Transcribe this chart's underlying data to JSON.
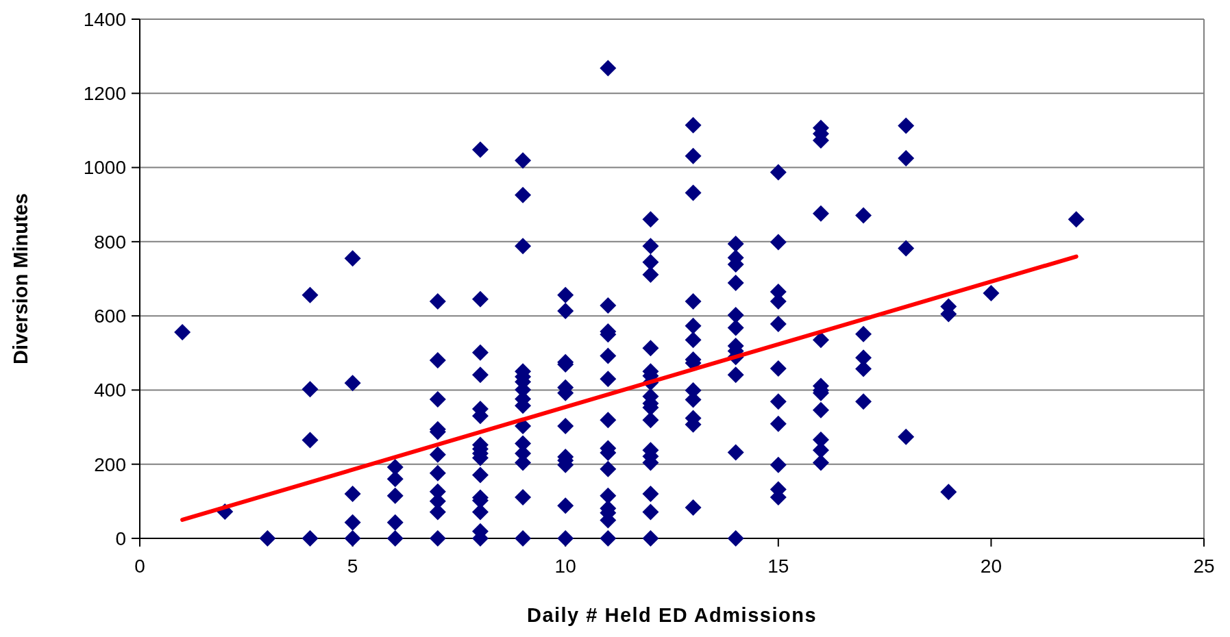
{
  "chart_data": {
    "type": "scatter",
    "xlabel": "Daily # Held ED Admissions",
    "ylabel": "Diversion Minutes",
    "xlim": [
      0,
      25
    ],
    "xticks": [
      0,
      5,
      10,
      15,
      20,
      25
    ],
    "ylim": [
      0,
      1400
    ],
    "yticks": [
      0,
      200,
      400,
      600,
      800,
      1000,
      1200,
      1400
    ],
    "grid": "y",
    "series": [
      {
        "color": "#000080",
        "marker": "diamond",
        "x": [
          1,
          2,
          3,
          4,
          4,
          4,
          4,
          5,
          5,
          5,
          5,
          5,
          6,
          6,
          6,
          6,
          6,
          7,
          7,
          7,
          7,
          7,
          7,
          7,
          7,
          7,
          7,
          7,
          8,
          8,
          8,
          8,
          8,
          8,
          8,
          8,
          8,
          8,
          8,
          8,
          8,
          8,
          8,
          8,
          9,
          9,
          9,
          9,
          9,
          9,
          9,
          9,
          9,
          9,
          9,
          9,
          9,
          9,
          9,
          10,
          10,
          10,
          10,
          10,
          10,
          10,
          10,
          10,
          10,
          10,
          10,
          11,
          11,
          11,
          11,
          11,
          11,
          11,
          11,
          11,
          11,
          11,
          11,
          11,
          11,
          11,
          12,
          12,
          12,
          12,
          12,
          12,
          12,
          12,
          12,
          12,
          12,
          12,
          12,
          12,
          12,
          12,
          12,
          12,
          13,
          13,
          13,
          13,
          13,
          13,
          13,
          13,
          13,
          13,
          13,
          13,
          13,
          14,
          14,
          14,
          14,
          14,
          14,
          14,
          14,
          14,
          14,
          14,
          14,
          15,
          15,
          15,
          15,
          15,
          15,
          15,
          15,
          15,
          15,
          15,
          16,
          16,
          16,
          16,
          16,
          16,
          16,
          16,
          16,
          16,
          16,
          16,
          17,
          17,
          17,
          17,
          17,
          18,
          18,
          18,
          18,
          19,
          19,
          19,
          20,
          22
        ],
        "values": [
          556,
          72,
          0,
          656,
          402,
          265,
          0,
          755,
          419,
          120,
          43,
          0,
          192,
          160,
          115,
          43,
          0,
          639,
          480,
          375,
          294,
          287,
          226,
          176,
          126,
          100,
          71,
          0,
          1048,
          645,
          501,
          441,
          349,
          330,
          252,
          241,
          229,
          217,
          171,
          110,
          102,
          71,
          19,
          0,
          1019,
          926,
          788,
          450,
          436,
          422,
          401,
          376,
          358,
          303,
          256,
          229,
          204,
          111,
          0,
          656,
          613,
          475,
          469,
          407,
          392,
          303,
          220,
          210,
          198,
          88,
          0,
          1268,
          628,
          558,
          550,
          492,
          430,
          319,
          243,
          231,
          187,
          115,
          81,
          69,
          49,
          0,
          860,
          788,
          745,
          711,
          513,
          450,
          438,
          420,
          383,
          364,
          353,
          319,
          238,
          221,
          204,
          120,
          71,
          0,
          1114,
          1031,
          932,
          639,
          573,
          535,
          482,
          473,
          399,
          374,
          324,
          307,
          83,
          794,
          757,
          739,
          689,
          602,
          568,
          519,
          505,
          489,
          441,
          232,
          0,
          987,
          799,
          665,
          639,
          578,
          458,
          369,
          309,
          198,
          132,
          111,
          1107,
          1091,
          1073,
          876,
          535,
          411,
          399,
          392,
          346,
          266,
          238,
          204,
          871,
          551,
          487,
          457,
          369,
          1113,
          1025,
          782,
          274,
          625,
          605,
          125,
          661,
          860
        ]
      },
      {
        "type": "line",
        "color": "#ff0000",
        "marker": "none",
        "line_style": "solid",
        "x": [
          1,
          22
        ],
        "values": [
          50,
          760
        ]
      }
    ]
  }
}
